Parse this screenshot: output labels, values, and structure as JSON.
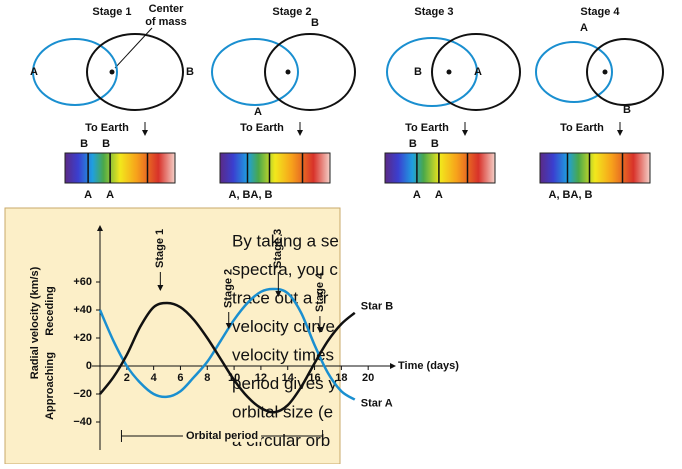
{
  "stages": [
    {
      "title": "Stage 1",
      "orbit_labels": [
        "A",
        "B"
      ],
      "earth": "To Earth",
      "spectrum_top": [
        "B",
        "B"
      ],
      "spectrum_bottom": [
        "A",
        "A"
      ]
    },
    {
      "title": "Stage 2",
      "orbit_labels": [
        "A",
        "B"
      ],
      "earth": "To Earth",
      "spectrum_bottom": [
        "A, B",
        "A, B"
      ]
    },
    {
      "title": "Stage 3",
      "orbit_labels": [
        "B",
        "A"
      ],
      "earth": "To Earth",
      "spectrum_top": [
        "B",
        "B"
      ],
      "spectrum_bottom": [
        "A",
        "A"
      ]
    },
    {
      "title": "Stage 4",
      "orbit_labels": [
        "A",
        "B"
      ],
      "earth": "To Earth",
      "spectrum_bottom": [
        "A, B",
        "A, B"
      ]
    }
  ],
  "center_of_mass": [
    "Center",
    "of mass"
  ],
  "paragraph": [
    "By taking a se",
    "spectra, you c",
    "trace out a “r",
    "velocity curve",
    "velocity times",
    "period gives y",
    "orbital size (e",
    "a circular orb"
  ],
  "chart_data": {
    "type": "line",
    "xlabel": "Time (days)",
    "ylabel": "Radial velocity (km/s)",
    "ylabel_parts": [
      "Approaching",
      "Receding"
    ],
    "x": [
      0,
      1,
      2,
      3,
      4,
      5,
      6,
      7,
      8,
      9,
      10,
      11,
      12,
      13,
      14,
      15,
      16,
      17,
      18,
      19
    ],
    "series": [
      {
        "name": "Star A",
        "color": "#1a8fd0",
        "values": [
          40,
          18,
          0,
          -12,
          -20,
          -22,
          -18,
          -8,
          3,
          18,
          33,
          45,
          53,
          55,
          52,
          38,
          15,
          -5,
          -18,
          -24
        ]
      },
      {
        "name": "Star B",
        "color": "#111111",
        "values": [
          -20,
          -8,
          8,
          28,
          42,
          45,
          42,
          33,
          20,
          5,
          -10,
          -22,
          -30,
          -33,
          -28,
          -15,
          2,
          18,
          30,
          38
        ]
      }
    ],
    "xlim": [
      0,
      22
    ],
    "ylim": [
      -60,
      100
    ],
    "xticks": [
      2,
      4,
      6,
      8,
      10,
      12,
      14,
      16,
      18,
      20
    ],
    "yticks": [
      {
        "value": 60,
        "label": "+60"
      },
      {
        "value": 40,
        "label": "+40"
      },
      {
        "value": 20,
        "label": "+20"
      },
      0,
      {
        "value": -20,
        "label": "−20"
      },
      {
        "value": -40,
        "label": "−40"
      }
    ],
    "stage_markers": [
      {
        "label": "Stage 1",
        "x": 4.5
      },
      {
        "label": "Stage 2",
        "x": 9.6
      },
      {
        "label": "Stage 3",
        "x": 13.3
      },
      {
        "label": "Stage 4",
        "x": 16.4
      }
    ],
    "period_label": "Orbital period",
    "period": [
      1.6,
      16.6
    ]
  }
}
